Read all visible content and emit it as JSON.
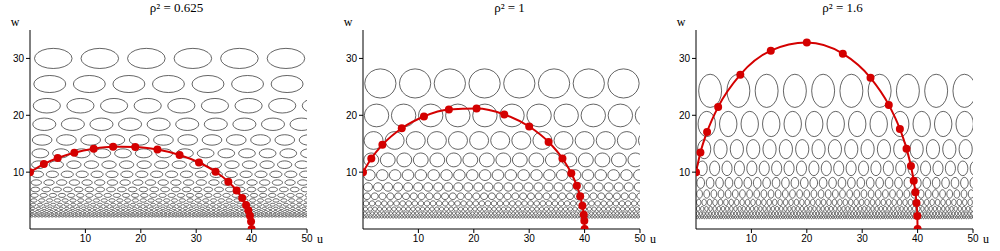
{
  "chart_data": [
    {
      "type": "line",
      "title": "ρ² = 0.625",
      "x_label": "u",
      "y_label": "w",
      "xlim": [
        0,
        50
      ],
      "ylim": [
        0,
        35
      ],
      "xticks": [
        10,
        20,
        30,
        40,
        50
      ],
      "yticks": [
        10,
        20,
        30
      ],
      "series": [
        {
          "type": "line",
          "color": "#d40000",
          "marker": "circle",
          "x": [
            0,
            2.5,
            5,
            8,
            11.5,
            15,
            19,
            23,
            27,
            30.5,
            33.5,
            35.8,
            37.3,
            38.3,
            39,
            39.4,
            39.7,
            39.9,
            40
          ],
          "values": [
            10,
            11.42,
            12.48,
            13.42,
            14.12,
            14.46,
            14.43,
            13.97,
            13.02,
            11.7,
            10.07,
            8.32,
            6.79,
            5.45,
            4.21,
            3.28,
            2.32,
            1.34,
            0
          ]
        }
      ],
      "ellipses": {
        "color": "#222222",
        "rows": [
          {
            "w": 30,
            "rx": 3.39,
            "ry": 1.77,
            "du": 8.4
          },
          {
            "w": 25.5,
            "rx": 2.88,
            "ry": 1.5,
            "du": 7.14
          },
          {
            "w": 21.68,
            "rx": 2.45,
            "ry": 1.28,
            "du": 6.07
          },
          {
            "w": 18.42,
            "rx": 2.08,
            "ry": 1.09,
            "du": 5.16
          },
          {
            "w": 15.66,
            "rx": 1.77,
            "ry": 0.92,
            "du": 4.38
          },
          {
            "w": 13.31,
            "rx": 1.5,
            "ry": 0.79,
            "du": 3.73
          },
          {
            "w": 11.31,
            "rx": 1.28,
            "ry": 0.67,
            "du": 3.17
          },
          {
            "w": 9.62,
            "rx": 1.09,
            "ry": 0.57,
            "du": 2.69
          },
          {
            "w": 8.17,
            "rx": 0.92,
            "ry": 0.48,
            "du": 2.29
          },
          {
            "w": 6.95,
            "rx": 0.79,
            "ry": 0.41,
            "du": 1.95
          },
          {
            "w": 5.91,
            "rx": 0.67,
            "ry": 0.35,
            "du": 1.65
          },
          {
            "w": 5.02,
            "rx": 0.57,
            "ry": 0.3,
            "du": 1.41
          },
          {
            "w": 4.27,
            "rx": 0.48,
            "ry": 0.25,
            "du": 1.2
          },
          {
            "w": 3.63,
            "rx": 0.41,
            "ry": 0.21,
            "du": 1.02
          },
          {
            "w": 3.08,
            "rx": 0.35,
            "ry": 0.18,
            "du": 0.86
          },
          {
            "w": 2.62,
            "rx": 0.3,
            "ry": 0.15,
            "du": 0.73
          },
          {
            "w": 2.23,
            "rx": 0.25,
            "ry": 0.13,
            "du": 0.62
          }
        ]
      }
    },
    {
      "type": "line",
      "title": "ρ² = 1",
      "x_label": "u",
      "y_label": "w",
      "xlim": [
        0,
        50
      ],
      "ylim": [
        0,
        35
      ],
      "xticks": [
        10,
        20,
        30,
        40,
        50
      ],
      "yticks": [
        10,
        20,
        30
      ],
      "series": [
        {
          "type": "line",
          "color": "#d40000",
          "marker": "circle",
          "x": [
            0,
            1.5,
            3.5,
            7,
            11,
            15.5,
            20.5,
            25.5,
            30,
            33.5,
            36,
            37.6,
            38.6,
            39.2,
            39.6,
            39.85,
            39.95,
            40
          ],
          "values": [
            10,
            12.41,
            14.8,
            17.71,
            19.79,
            21,
            21.18,
            20.15,
            18.03,
            15.3,
            12.41,
            9.81,
            7.59,
            5.78,
            4.1,
            2.52,
            1.46,
            0
          ]
        }
      ],
      "ellipses": {
        "color": "#222222",
        "rows": [
          {
            "w": 25.6,
            "rx": 2.82,
            "ry": 2.56,
            "du": 6.27
          },
          {
            "w": 19.97,
            "rx": 2.2,
            "ry": 2,
            "du": 4.89
          },
          {
            "w": 15.57,
            "rx": 1.71,
            "ry": 1.56,
            "du": 3.81
          },
          {
            "w": 12.15,
            "rx": 1.34,
            "ry": 1.22,
            "du": 2.98
          },
          {
            "w": 9.48,
            "rx": 1.04,
            "ry": 0.95,
            "du": 2.32
          },
          {
            "w": 7.39,
            "rx": 0.81,
            "ry": 0.74,
            "du": 1.81
          },
          {
            "w": 5.76,
            "rx": 0.63,
            "ry": 0.58,
            "du": 1.41
          },
          {
            "w": 4.5,
            "rx": 0.5,
            "ry": 0.45,
            "du": 1.1
          },
          {
            "w": 3.51,
            "rx": 0.39,
            "ry": 0.35,
            "du": 0.86
          },
          {
            "w": 2.74,
            "rx": 0.3,
            "ry": 0.27,
            "du": 0.67
          },
          {
            "w": 2.13,
            "rx": 0.23,
            "ry": 0.21,
            "du": 0.52
          }
        ]
      }
    },
    {
      "type": "line",
      "title": "ρ² = 1.6",
      "x_label": "u",
      "y_label": "w",
      "xlim": [
        0,
        50
      ],
      "ylim": [
        0,
        35
      ],
      "xticks": [
        10,
        20,
        30,
        40,
        50
      ],
      "yticks": [
        10,
        20,
        30
      ],
      "series": [
        {
          "type": "line",
          "color": "#d40000",
          "marker": "circle",
          "x": [
            0,
            0.8,
            2,
            4,
            8,
            13.5,
            20,
            26.5,
            31.5,
            34.8,
            36.8,
            38,
            38.8,
            39.3,
            39.6,
            39.8,
            39.95,
            40
          ],
          "values": [
            10,
            13.44,
            17.08,
            21.47,
            27.15,
            31.36,
            32.79,
            30.83,
            26.59,
            21.83,
            17.6,
            14.13,
            11.06,
            8.5,
            6.45,
            4.57,
            2.29,
            0
          ]
        }
      ],
      "ellipses": {
        "color": "#222222",
        "rows": [
          {
            "w": 24.3,
            "rx": 2.07,
            "ry": 2.92,
            "du": 5.1
          },
          {
            "w": 18.47,
            "rx": 1.57,
            "ry": 2.22,
            "du": 3.88
          },
          {
            "w": 14.04,
            "rx": 1.19,
            "ry": 1.68,
            "du": 2.95
          },
          {
            "w": 10.67,
            "rx": 0.91,
            "ry": 1.28,
            "du": 2.24
          },
          {
            "w": 8.11,
            "rx": 0.69,
            "ry": 0.97,
            "du": 1.7
          },
          {
            "w": 6.16,
            "rx": 0.52,
            "ry": 0.74,
            "du": 1.29
          },
          {
            "w": 4.68,
            "rx": 0.4,
            "ry": 0.56,
            "du": 0.98
          },
          {
            "w": 3.56,
            "rx": 0.3,
            "ry": 0.43,
            "du": 0.75
          },
          {
            "w": 2.71,
            "rx": 0.23,
            "ry": 0.33,
            "du": 0.57
          },
          {
            "w": 2.06,
            "rx": 0.18,
            "ry": 0.25,
            "du": 0.43
          }
        ]
      }
    }
  ]
}
